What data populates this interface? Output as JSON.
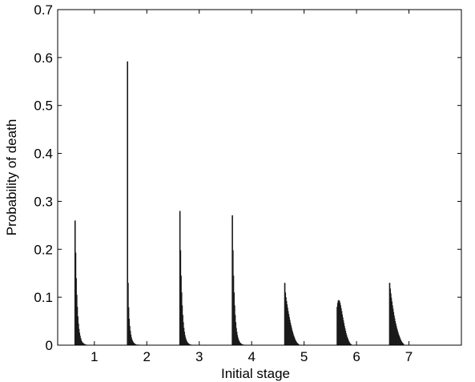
{
  "chart_data": {
    "type": "bar",
    "title": "",
    "xlabel": "Initial stage",
    "ylabel": "Probability of death",
    "ylim": [
      0,
      0.7
    ],
    "grid": false,
    "legend": "none",
    "bar_color": "#1a1a1a",
    "x_ticks": [
      "1",
      "2",
      "3",
      "4",
      "5",
      "6",
      "7"
    ],
    "y_ticks": [
      "0",
      "0.1",
      "0.2",
      "0.3",
      "0.4",
      "0.5",
      "0.6",
      "0.7"
    ],
    "groups": [
      {
        "stage": "1",
        "values": [
          0.26,
          0.193,
          0.14,
          0.105,
          0.08,
          0.06,
          0.045,
          0.034,
          0.026,
          0.02,
          0.015,
          0.011,
          0.008,
          0.006,
          0.005,
          0.004,
          0.003,
          0.002,
          0.002,
          0.001,
          0.001,
          0.001
        ]
      },
      {
        "stage": "2",
        "values": [
          0.592,
          0.13,
          0.079,
          0.055,
          0.04,
          0.03,
          0.022,
          0.016,
          0.012,
          0.009,
          0.007,
          0.005,
          0.004,
          0.003,
          0.002,
          0.002,
          0.001,
          0.001,
          0.001,
          0.001,
          0.001,
          0.001
        ]
      },
      {
        "stage": "3",
        "values": [
          0.28,
          0.198,
          0.145,
          0.11,
          0.083,
          0.063,
          0.048,
          0.036,
          0.028,
          0.021,
          0.016,
          0.012,
          0.009,
          0.007,
          0.005,
          0.004,
          0.003,
          0.002,
          0.002,
          0.001,
          0.001,
          0.001
        ]
      },
      {
        "stage": "4",
        "values": [
          0.271,
          0.198,
          0.145,
          0.11,
          0.083,
          0.063,
          0.048,
          0.036,
          0.028,
          0.021,
          0.016,
          0.012,
          0.009,
          0.007,
          0.005,
          0.004,
          0.003,
          0.002,
          0.002,
          0.001,
          0.001,
          0.001
        ]
      },
      {
        "stage": "5",
        "values": [
          0.13,
          0.11,
          0.1,
          0.092,
          0.085,
          0.078,
          0.071,
          0.065,
          0.059,
          0.053,
          0.047,
          0.042,
          0.037,
          0.032,
          0.028,
          0.024,
          0.02,
          0.017,
          0.014,
          0.011,
          0.009,
          0.007,
          0.005,
          0.004,
          0.003,
          0.002
        ]
      },
      {
        "stage": "6",
        "values": [
          0.08,
          0.088,
          0.093,
          0.094,
          0.092,
          0.088,
          0.083,
          0.077,
          0.071,
          0.064,
          0.058,
          0.052,
          0.046,
          0.04,
          0.035,
          0.03,
          0.025,
          0.021,
          0.017,
          0.014,
          0.011,
          0.008,
          0.006,
          0.004,
          0.003,
          0.002
        ]
      },
      {
        "stage": "7",
        "values": [
          0.13,
          0.118,
          0.108,
          0.099,
          0.091,
          0.083,
          0.076,
          0.069,
          0.062,
          0.056,
          0.05,
          0.045,
          0.04,
          0.035,
          0.031,
          0.027,
          0.023,
          0.02,
          0.017,
          0.014,
          0.011,
          0.009,
          0.007,
          0.005,
          0.004,
          0.003
        ]
      }
    ]
  }
}
